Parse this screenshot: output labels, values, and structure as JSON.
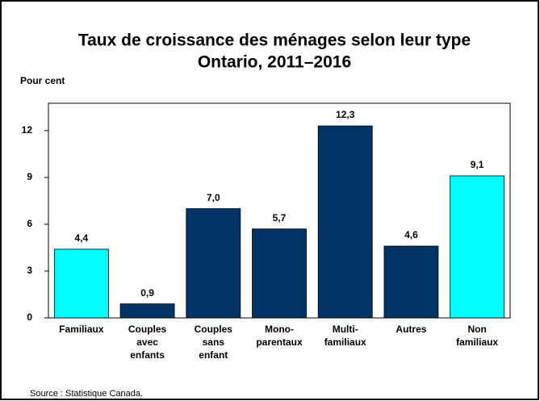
{
  "chart_data": {
    "type": "bar",
    "title": [
      "Taux de croissance des ménages selon leur type",
      "Ontario, 2011–2016"
    ],
    "y_label": "Pour cent",
    "categories": [
      [
        "Familiaux"
      ],
      [
        "Couples",
        "avec",
        "enfants"
      ],
      [
        "Couples",
        "sans",
        "enfant"
      ],
      [
        "Mono-",
        "parentaux"
      ],
      [
        "Multi-",
        "familiaux"
      ],
      [
        "Autres"
      ],
      [
        "Non",
        "familiaux"
      ]
    ],
    "values": [
      4.4,
      0.9,
      7.0,
      5.7,
      12.3,
      4.6,
      9.1
    ],
    "value_labels": [
      "4,4",
      "0,9",
      "7,0",
      "5,7",
      "12,3",
      "4,6",
      "9,1"
    ],
    "colors": [
      "#00ffff",
      "#003366",
      "#003366",
      "#003366",
      "#003366",
      "#003366",
      "#00ffff"
    ],
    "ylim": [
      0,
      13.75
    ],
    "yticks": [
      0,
      3,
      6,
      9,
      12
    ],
    "source": "Source : Statistique Canada."
  }
}
